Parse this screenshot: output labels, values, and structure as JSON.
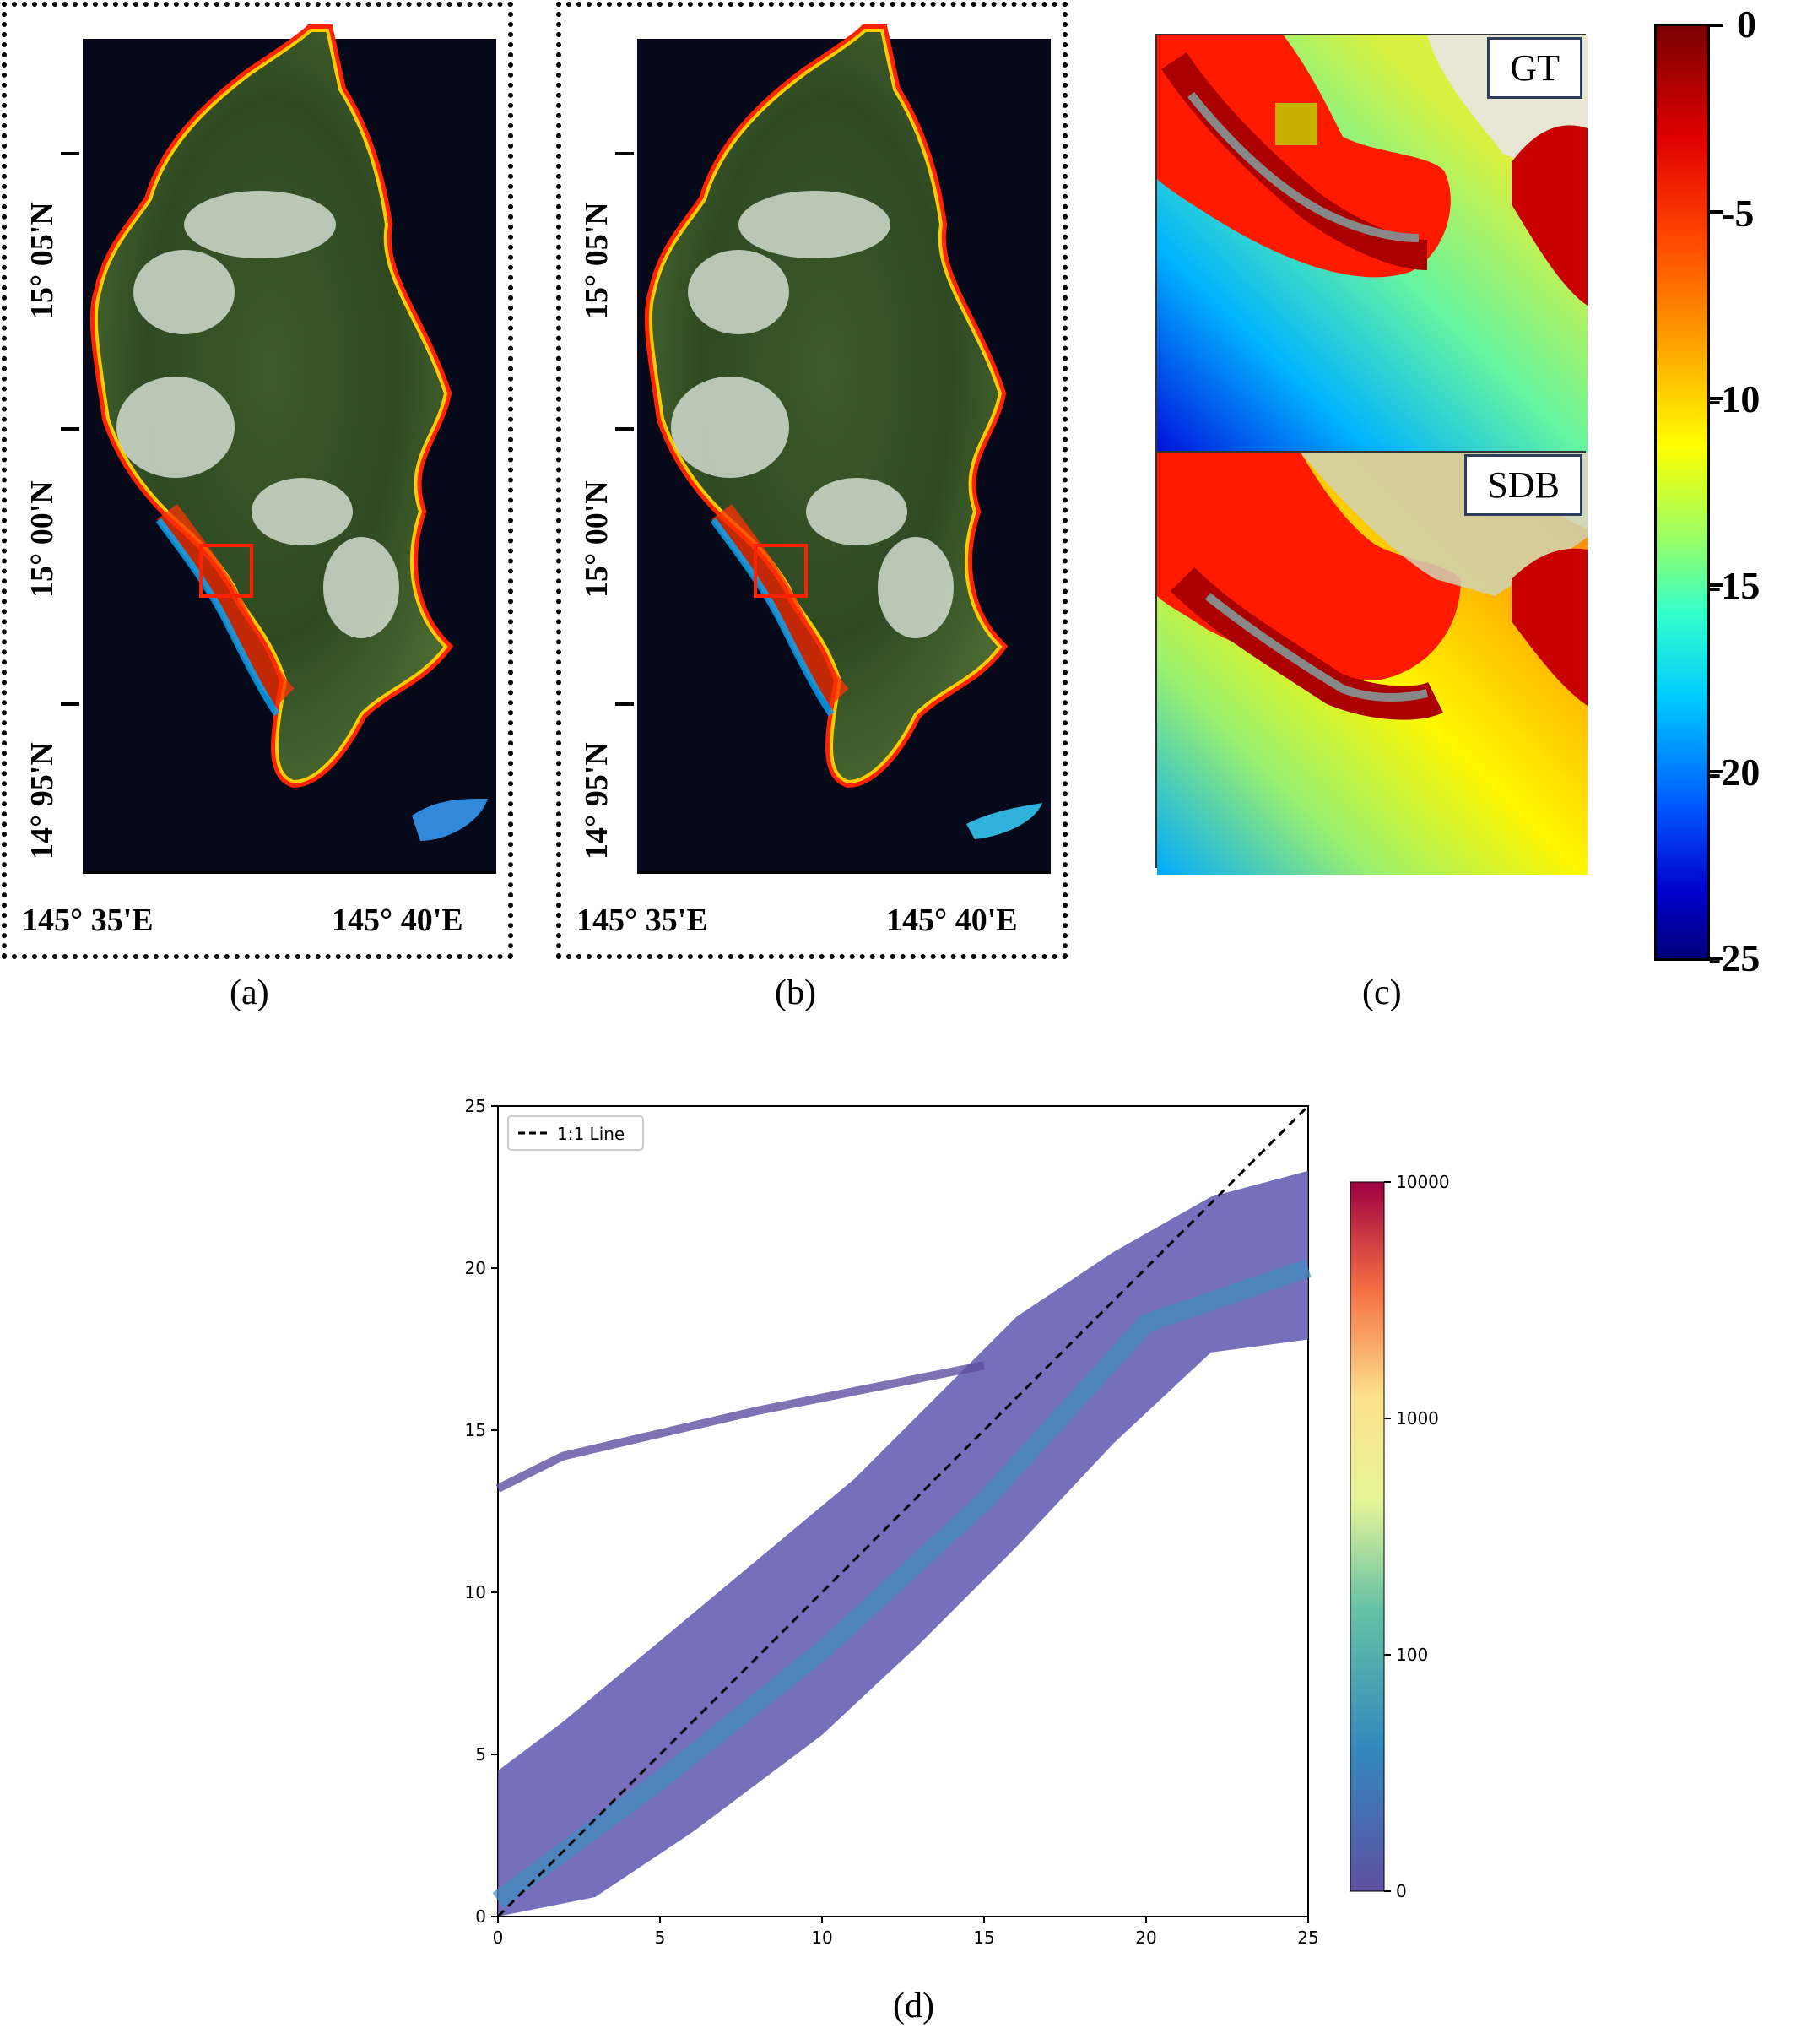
{
  "panels": {
    "a": {
      "caption": "(a)"
    },
    "b": {
      "caption": "(b)"
    },
    "c": {
      "caption": "(c)"
    },
    "d": {
      "caption": "(d)"
    }
  },
  "map": {
    "lat_labels": [
      "15° 05'N",
      "15° 00'N",
      "14° 95'N"
    ],
    "lon_labels": [
      "145° 35'E",
      "145° 40'E"
    ]
  },
  "inset": {
    "gt_label": "GT",
    "sdb_label": "SDB"
  },
  "depth_colorbar": {
    "tick_labels": [
      "0",
      "-5",
      "-10",
      "-15",
      "-20",
      "-25"
    ],
    "colors": [
      "#7a0000",
      "#ff0000",
      "#ff9900",
      "#ffff00",
      "#33ff99",
      "#00ccff",
      "#0033ff",
      "#00007a"
    ]
  },
  "chart_data": {
    "type": "scatter",
    "title": "",
    "xlabel": "",
    "ylabel": "",
    "xlim": [
      0,
      25
    ],
    "ylim": [
      0,
      25
    ],
    "x_ticks": [
      "0",
      "5",
      "10",
      "15",
      "20",
      "25"
    ],
    "y_ticks": [
      "0",
      "5",
      "10",
      "15",
      "20",
      "25"
    ],
    "legend": {
      "position": "top-left",
      "entries": [
        "1:1 Line"
      ]
    },
    "reference_line": {
      "name": "1:1 Line",
      "from": [
        0,
        0
      ],
      "to": [
        25,
        25
      ]
    },
    "density_band": {
      "lower": [
        [
          0,
          0
        ],
        [
          3,
          0.6
        ],
        [
          6,
          2.6
        ],
        [
          10,
          5.6
        ],
        [
          13,
          8.4
        ],
        [
          16,
          11.4
        ],
        [
          19,
          14.6
        ],
        [
          22,
          17.4
        ],
        [
          25,
          17.8
        ]
      ],
      "upper": [
        [
          0,
          4.5
        ],
        [
          2,
          6
        ],
        [
          5,
          8.5
        ],
        [
          8,
          11
        ],
        [
          11,
          13.5
        ],
        [
          14,
          16.5
        ],
        [
          16,
          18.5
        ],
        [
          19,
          20.5
        ],
        [
          22,
          22.2
        ],
        [
          25,
          23
        ]
      ],
      "core": [
        [
          0,
          0.5
        ],
        [
          5,
          4.2
        ],
        [
          10,
          8.2
        ],
        [
          15,
          12.8
        ],
        [
          20,
          18.3
        ],
        [
          25,
          20
        ]
      ]
    },
    "outlier_streak": [
      [
        0,
        13.2
      ],
      [
        2,
        14.2
      ],
      [
        5,
        14.9
      ],
      [
        8,
        15.6
      ],
      [
        11,
        16.2
      ],
      [
        14,
        16.8
      ],
      [
        15,
        17.0
      ]
    ],
    "colorbar": {
      "scale": "log",
      "tick_labels": [
        "10000",
        "1000",
        "100",
        "0"
      ],
      "colors": [
        "#9e0142",
        "#f46d43",
        "#fee08b",
        "#e6f598",
        "#66c2a5",
        "#3288bd",
        "#5e4fa2"
      ]
    }
  }
}
